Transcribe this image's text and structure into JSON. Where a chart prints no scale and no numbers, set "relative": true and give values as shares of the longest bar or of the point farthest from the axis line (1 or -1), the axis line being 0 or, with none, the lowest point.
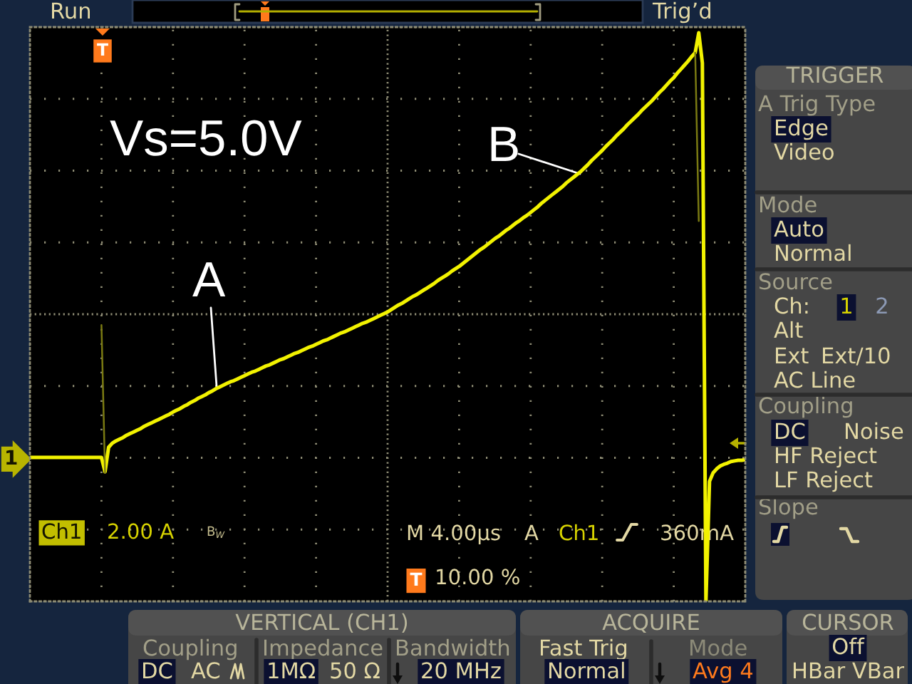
{
  "chart_data": {
    "type": "line",
    "relative": true,
    "grid": true,
    "tick_labels": false,
    "categories": [
      null,
      null,
      null,
      null,
      null,
      null,
      null,
      null,
      null,
      null,
      null,
      null,
      null,
      null,
      null,
      null,
      null,
      null,
      null,
      null,
      null,
      null,
      null,
      null,
      null,
      null,
      null,
      null,
      null,
      null,
      null,
      null,
      null,
      null,
      null,
      null,
      null,
      null,
      null,
      null,
      null,
      null,
      null,
      null,
      null,
      null,
      null,
      null,
      null,
      null,
      null,
      null,
      null,
      null,
      null,
      null,
      null,
      null,
      null,
      null,
      null,
      null,
      null,
      null,
      null,
      null,
      null,
      null,
      null,
      null,
      null,
      null,
      null,
      null,
      null,
      null,
      null,
      null,
      null,
      null,
      null,
      null,
      null,
      null,
      null,
      null,
      null,
      null,
      null,
      null,
      null,
      null,
      null,
      null,
      null,
      null,
      null,
      null,
      null,
      null,
      null,
      null,
      null,
      null,
      null,
      null,
      null,
      null,
      null,
      null,
      null,
      null,
      null,
      null,
      null,
      null,
      null,
      null,
      null,
      null,
      null,
      null,
      null,
      null,
      null,
      null,
      null,
      null,
      null,
      null,
      null,
      null,
      null,
      null,
      null,
      null,
      null,
      null,
      null,
      null,
      null,
      null,
      null,
      null,
      null,
      null,
      null,
      null,
      null,
      null,
      null,
      null,
      null,
      null,
      null,
      null,
      null,
      null,
      null,
      null,
      null,
      null,
      null,
      null,
      null,
      null,
      null,
      null,
      null,
      null,
      null,
      null,
      null,
      null,
      null,
      null,
      null,
      null,
      null,
      null,
      null,
      null,
      null,
      null,
      null,
      null,
      null,
      null,
      null,
      null,
      null,
      null,
      null,
      null,
      null,
      null,
      null,
      null,
      null,
      null,
      null
    ],
    "series": [
      {
        "color": "#f2f200",
        "values": [
          0.253,
          0.253,
          0.253,
          0.253,
          0.253,
          0.253,
          0.253,
          0.253,
          0.253,
          0.253,
          0.253,
          0.253,
          0.253,
          0.253,
          0.253,
          0.253,
          0.253,
          0.253,
          0.253,
          0.253,
          0.253,
          0.228,
          0.271,
          0.278,
          0.282,
          0.285,
          0.288,
          0.292,
          0.295,
          0.298,
          0.301,
          0.304,
          0.308,
          0.311,
          0.314,
          0.317,
          0.32,
          0.323,
          0.326,
          0.329,
          0.333,
          0.336,
          0.339,
          0.343,
          0.346,
          0.35,
          0.353,
          0.357,
          0.36,
          0.363,
          0.367,
          0.37,
          0.374,
          0.377,
          0.38,
          0.383,
          0.386,
          0.388,
          0.391,
          0.394,
          0.397,
          0.4,
          0.403,
          0.405,
          0.408,
          0.411,
          0.414,
          0.416,
          0.419,
          0.422,
          0.425,
          0.427,
          0.43,
          0.433,
          0.436,
          0.438,
          0.441,
          0.444,
          0.447,
          0.449,
          0.452,
          0.455,
          0.458,
          0.46,
          0.463,
          0.466,
          0.469,
          0.472,
          0.474,
          0.477,
          0.48,
          0.483,
          0.486,
          0.489,
          0.491,
          0.494,
          0.497,
          0.5,
          0.503,
          0.506,
          0.509,
          0.513,
          0.517,
          0.521,
          0.524,
          0.528,
          0.532,
          0.536,
          0.539,
          0.543,
          0.547,
          0.551,
          0.555,
          0.559,
          0.564,
          0.568,
          0.572,
          0.576,
          0.581,
          0.585,
          0.589,
          0.594,
          0.599,
          0.604,
          0.609,
          0.614,
          0.619,
          0.623,
          0.628,
          0.633,
          0.638,
          0.642,
          0.647,
          0.652,
          0.656,
          0.661,
          0.666,
          0.67,
          0.675,
          0.679,
          0.684,
          0.689,
          0.694,
          0.7,
          0.705,
          0.71,
          0.715,
          0.72,
          0.725,
          0.73,
          0.736,
          0.741,
          0.746,
          0.751,
          0.756,
          0.762,
          0.768,
          0.775,
          0.781,
          0.787,
          0.793,
          0.8,
          0.806,
          0.812,
          0.819,
          0.825,
          0.831,
          0.838,
          0.844,
          0.85,
          0.856,
          0.863,
          0.869,
          0.875,
          0.881,
          0.888,
          0.895,
          0.901,
          0.908,
          0.915,
          0.921,
          0.929,
          0.936,
          0.943,
          0.95,
          0.958,
          0.965,
          1,
          0.947,
          0,
          0.211,
          0.226,
          0.233,
          0.238,
          0.241,
          0.243,
          0.246,
          0.247,
          0.248,
          0.248,
          0.249
        ]
      },
      {
        "color": "#7a7a12",
        "values": [
          null,
          null,
          null,
          null,
          null,
          null,
          null,
          null,
          null,
          null,
          null,
          null,
          null,
          null,
          null,
          null,
          null,
          null,
          null,
          null,
          0.486,
          0.226,
          null,
          null,
          null,
          null,
          null,
          null,
          null,
          null,
          null,
          null,
          null,
          null,
          null,
          null,
          null,
          null,
          null,
          null,
          null,
          null,
          null,
          null,
          null,
          null,
          null,
          null,
          null,
          null,
          null,
          null,
          null,
          null,
          null,
          null,
          null,
          null,
          null,
          null,
          null,
          null,
          null,
          null,
          null,
          null,
          null,
          null,
          null,
          null,
          null,
          null,
          null,
          null,
          null,
          null,
          null,
          null,
          null,
          null,
          null,
          null,
          null,
          null,
          null,
          null,
          null,
          null,
          null,
          null,
          null,
          null,
          null,
          null,
          null,
          null,
          null,
          null,
          null,
          null,
          null,
          null,
          null,
          null,
          null,
          null,
          null,
          null,
          null,
          null,
          null,
          null,
          null,
          null,
          null,
          null,
          null,
          null,
          null,
          null,
          null,
          null,
          null,
          null,
          null,
          null,
          null,
          null,
          null,
          null,
          null,
          null,
          null,
          null,
          null,
          null,
          null,
          null,
          null,
          null,
          null,
          null,
          null,
          null,
          null,
          null,
          null,
          null,
          null,
          null,
          null,
          null,
          null,
          null,
          null,
          null,
          null,
          null,
          null,
          null,
          null,
          null,
          null,
          null,
          null,
          null,
          null,
          null,
          null,
          null,
          null,
          null,
          null,
          null,
          null,
          null,
          null,
          null,
          null,
          null,
          null,
          null,
          null,
          null,
          null,
          null,
          null,
          null,
          null,
          null,
          null,
          null,
          null,
          null,
          null,
          null,
          null,
          null,
          null,
          null,
          null
        ]
      },
      {
        "color": "#7a7a12",
        "values": [
          null,
          null,
          null,
          null,
          null,
          null,
          null,
          null,
          null,
          null,
          null,
          null,
          null,
          null,
          null,
          null,
          null,
          null,
          null,
          null,
          null,
          null,
          null,
          null,
          null,
          null,
          null,
          null,
          null,
          null,
          null,
          null,
          null,
          null,
          null,
          null,
          null,
          null,
          null,
          null,
          null,
          null,
          null,
          null,
          null,
          null,
          null,
          null,
          null,
          null,
          null,
          null,
          null,
          null,
          null,
          null,
          null,
          null,
          null,
          null,
          null,
          null,
          null,
          null,
          null,
          null,
          null,
          null,
          null,
          null,
          null,
          null,
          null,
          null,
          null,
          null,
          null,
          null,
          null,
          null,
          null,
          null,
          null,
          null,
          null,
          null,
          null,
          null,
          null,
          null,
          null,
          null,
          null,
          null,
          null,
          null,
          null,
          null,
          null,
          null,
          null,
          null,
          null,
          null,
          null,
          null,
          null,
          null,
          null,
          null,
          null,
          null,
          null,
          null,
          null,
          null,
          null,
          null,
          null,
          null,
          null,
          null,
          null,
          null,
          null,
          null,
          null,
          null,
          null,
          null,
          null,
          null,
          null,
          null,
          null,
          null,
          null,
          null,
          null,
          null,
          null,
          null,
          null,
          null,
          null,
          null,
          null,
          null,
          null,
          null,
          null,
          null,
          null,
          null,
          null,
          null,
          null,
          null,
          null,
          null,
          null,
          null,
          null,
          null,
          null,
          null,
          null,
          null,
          null,
          null,
          null,
          null,
          null,
          null,
          null,
          null,
          null,
          null,
          null,
          null,
          null,
          null,
          null,
          null,
          null,
          null,
          0.965,
          0.669,
          null,
          null,
          null,
          null,
          null,
          null,
          null,
          null,
          null,
          null,
          null,
          null,
          null
        ]
      }
    ],
    "annotations": [
      "Run",
      "Trig’d",
      "T",
      "Vs=5.0V",
      "A",
      "B",
      "1",
      "Ch1",
      "2.00 A",
      "B$_{W}$",
      "M 4.00µs",
      "A",
      "Ch1",
      "360mA",
      "T",
      "10.00 %",
      "TRIGGER",
      "A Trig Type",
      "Edge",
      "Video",
      "Mode",
      "Auto",
      "Normal",
      "Source",
      "Ch:",
      "1",
      "2",
      "Alt",
      "Ext",
      "Ext/10",
      "AC Line",
      "Coupling",
      "DC",
      "Noise",
      "HF Reject",
      "LF Reject",
      "Slope",
      "VERTICAL (CH1)",
      "Coupling",
      "Impedance",
      "Bandwidth",
      "DC",
      "AC",
      "1MΩ",
      "50 Ω",
      "20 MHz",
      "ACQUIRE",
      "Fast Trig",
      "Mode",
      "Normal",
      "Avg 4",
      "CURSOR",
      "Off",
      "HBar VBar"
    ]
  }
}
